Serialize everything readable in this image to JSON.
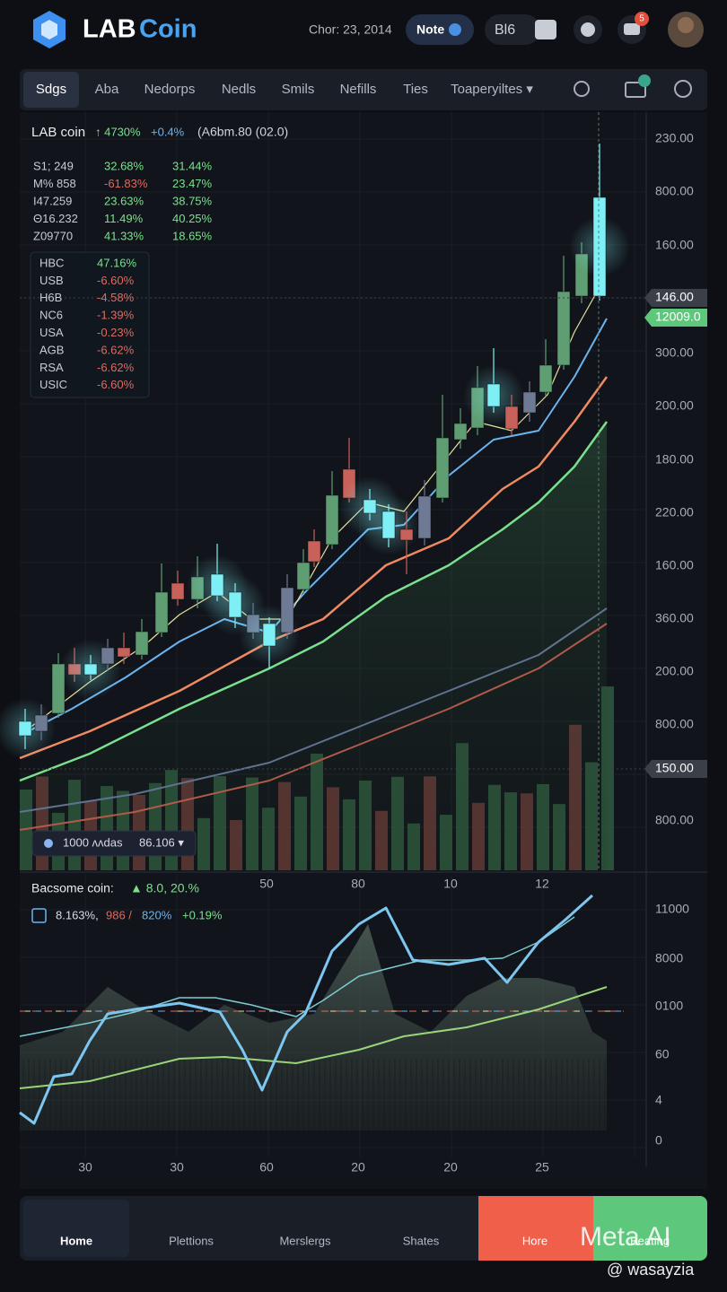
{
  "header": {
    "title_a": "LAB",
    "title_b": "Coin",
    "date": "Chor: 23, 2014",
    "note": "Note",
    "b16": "Bl6",
    "badge": "5"
  },
  "tabs": [
    "Sdgs",
    "Aba",
    "Nedorps",
    "Nedls",
    "Smils",
    "Nefills",
    "Ties",
    "Toaperyiltes ▾"
  ],
  "chart": {
    "symbol": "LAB coin",
    "change": "↑ 4730%",
    "pct": "+0.4%",
    "extra": "(A6bm.80 (02.0)",
    "stats": [
      [
        "S1; 249",
        "32.68%",
        "31.44%"
      ],
      [
        "M% 858",
        "-61.83%",
        "23.47%"
      ],
      [
        "I47.259",
        "23.63%",
        "38.75%"
      ],
      [
        "Θ16.232",
        "11.49%",
        "40.25%"
      ],
      [
        "Z09770",
        "41.33%",
        "18.65%"
      ]
    ],
    "watchlist": [
      [
        "HBC",
        "47.16%"
      ],
      [
        "USB",
        "-6.60%"
      ],
      [
        "H6B",
        "-4.58%"
      ],
      [
        "NC6",
        "-1.39%"
      ],
      [
        "USA",
        "-0.23%"
      ],
      [
        "AGB",
        "-6.62%"
      ],
      [
        "RSA",
        "-6.62%"
      ],
      [
        "USIC",
        "-6.60%"
      ]
    ],
    "price_axis": [
      "230.00",
      "800.00",
      "160.00",
      "300.00",
      "200.00",
      "180.00",
      "220.00",
      "160.00",
      "360.00",
      "200.00",
      "800.00",
      "800.00"
    ],
    "badges": [
      "146.00",
      "12009.0",
      "150.00"
    ],
    "volume_selector": [
      "1000 ʌʌdas",
      "86.106 ▾"
    ],
    "x_labels": [
      "50",
      "80",
      "10",
      "12"
    ]
  },
  "indicator": {
    "title": "Bacsome coin:",
    "change": "▲ 8.0, 20.%",
    "legend": [
      "8.163%,",
      "986 /",
      "820%",
      "+0.19%"
    ],
    "axis": [
      "11000",
      "8000",
      "0100",
      "60",
      "4",
      "0"
    ],
    "x_labels": [
      "30",
      "30",
      "60",
      "20",
      "20",
      "25"
    ]
  },
  "nav": [
    "Home",
    "Plettions",
    "Merslergs",
    "Shates",
    "Hore",
    "Beating"
  ],
  "watermark": {
    "brand": "Meta AI",
    "handle": "@ wasayzia"
  }
}
